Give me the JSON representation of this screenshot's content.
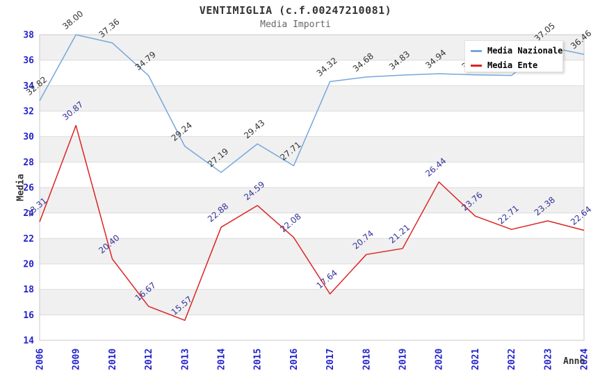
{
  "header": {
    "title": "VENTIMIGLIA (c.f.00247210081)",
    "subtitle": "Media Importi"
  },
  "axes": {
    "y_title": "Media",
    "x_title": "Anno"
  },
  "legend": {
    "position": "top-right",
    "items": [
      {
        "label": "Media Nazionale"
      },
      {
        "label": "Media Ente"
      }
    ]
  },
  "chart_data": {
    "type": "line",
    "title": "VENTIMIGLIA (c.f.00247210081)",
    "subtitle": "Media Importi",
    "xlabel": "Anno",
    "ylabel": "Media",
    "x_categories": [
      "2006",
      "2009",
      "2010",
      "2012",
      "2013",
      "2014",
      "2015",
      "2016",
      "2017",
      "2018",
      "2019",
      "2020",
      "2021",
      "2022",
      "2023",
      "2024"
    ],
    "ylim": [
      14,
      38
    ],
    "ytick_step": 2,
    "grid": "alternating-horizontal-bands",
    "legend_position": "top-right",
    "point_labels": "rotated, 2 decimals",
    "series": [
      {
        "name": "Media Nazionale",
        "color": "#74a7dc",
        "label_color": "#333333",
        "values": [
          32.82,
          38.0,
          37.36,
          34.79,
          29.24,
          27.19,
          29.43,
          27.71,
          34.32,
          34.68,
          34.83,
          34.94,
          34.85,
          34.8,
          37.05,
          36.46
        ]
      },
      {
        "name": "Media Ente",
        "color": "#dd2222",
        "label_color": "#333399",
        "values": [
          23.31,
          30.87,
          20.4,
          16.67,
          15.57,
          22.88,
          24.59,
          22.08,
          17.64,
          20.74,
          21.21,
          26.44,
          23.76,
          22.71,
          23.38,
          22.64
        ]
      }
    ]
  },
  "style": {
    "tick_color": "#2222cc",
    "band_color": "#f0f0f0",
    "grid_color": "#dcdcdc",
    "plot_border_color": "#c8c8c8",
    "background": "#ffffff"
  }
}
